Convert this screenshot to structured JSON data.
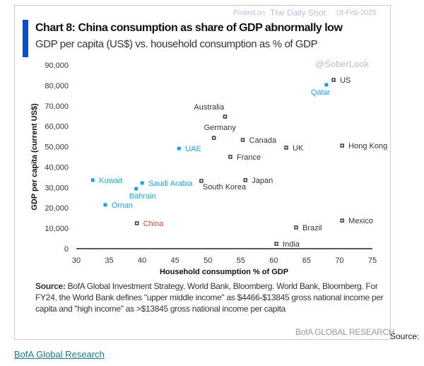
{
  "chart_data": {
    "type": "scatter",
    "title": "Chart 8: China consumption as share of GDP abnormally low",
    "subtitle": "GDP per capita (US$) vs. household consumption as % of GDP",
    "xlabel": "Household consumption % of GDP",
    "ylabel": "GDP per capita (current US$)",
    "xlim": [
      30,
      75
    ],
    "ylim": [
      0,
      90000
    ],
    "xticks": [
      "30",
      "35",
      "40",
      "45",
      "50",
      "55",
      "60",
      "65",
      "70",
      "75"
    ],
    "yticks": [
      "0",
      "10,000",
      "20,000",
      "30,000",
      "40,000",
      "50,000",
      "60,000",
      "70,000",
      "80,000",
      "90,000"
    ],
    "grid": false,
    "colors": {
      "default": "#2b3a67",
      "gulf": "#1da1e0",
      "china_label": "#e8413c",
      "label": "#333333"
    },
    "points": [
      {
        "label": "US",
        "x": 69.1,
        "y": 82700,
        "group": "default"
      },
      {
        "label": "Qatar",
        "x": 68.0,
        "y": 80300,
        "group": "gulf"
      },
      {
        "label": "Australia",
        "x": 52.6,
        "y": 64700,
        "group": "default"
      },
      {
        "label": "Germany",
        "x": 50.9,
        "y": 54300,
        "group": "default"
      },
      {
        "label": "Canada",
        "x": 55.3,
        "y": 53300,
        "group": "default"
      },
      {
        "label": "UK",
        "x": 61.9,
        "y": 49500,
        "group": "default"
      },
      {
        "label": "Hong Kong",
        "x": 70.4,
        "y": 50500,
        "group": "default"
      },
      {
        "label": "UAE",
        "x": 45.6,
        "y": 49100,
        "group": "gulf"
      },
      {
        "label": "France",
        "x": 53.4,
        "y": 45000,
        "group": "default"
      },
      {
        "label": "Kuwait",
        "x": 32.5,
        "y": 33600,
        "group": "gulf"
      },
      {
        "label": "Saudi Arabia",
        "x": 40.0,
        "y": 32200,
        "group": "gulf"
      },
      {
        "label": "South Korea",
        "x": 49.0,
        "y": 33200,
        "group": "default"
      },
      {
        "label": "Japan",
        "x": 55.7,
        "y": 33600,
        "group": "default"
      },
      {
        "label": "Bahrain",
        "x": 39.1,
        "y": 29400,
        "group": "gulf"
      },
      {
        "label": "Oman",
        "x": 34.4,
        "y": 21500,
        "group": "gulf"
      },
      {
        "label": "China",
        "x": 39.2,
        "y": 12500,
        "group": "china"
      },
      {
        "label": "Mexico",
        "x": 70.4,
        "y": 13800,
        "group": "default"
      },
      {
        "label": "Brazil",
        "x": 63.4,
        "y": 10400,
        "group": "default"
      },
      {
        "label": "India",
        "x": 60.4,
        "y": 2400,
        "group": "default"
      }
    ]
  },
  "watermark": {
    "posted": "Posted on",
    "site": "The Daily Shot",
    "date": "18-Feb-2025",
    "handle": "@SoberLook"
  },
  "source": {
    "label": "Source:",
    "text": " BofA Global Investment Strategy, World Bank, Bloomberg. World Bank, Bloomberg.  For FY24, the World Bank defines \"upper middle income\" as $4466-$13845 gross national income per capita and \"high income\" as >$13845 gross national income per capita"
  },
  "brand": "BofA GLOBAL RESEARCH",
  "page": {
    "source_label": "Source:",
    "link": "BofA Global Research"
  }
}
